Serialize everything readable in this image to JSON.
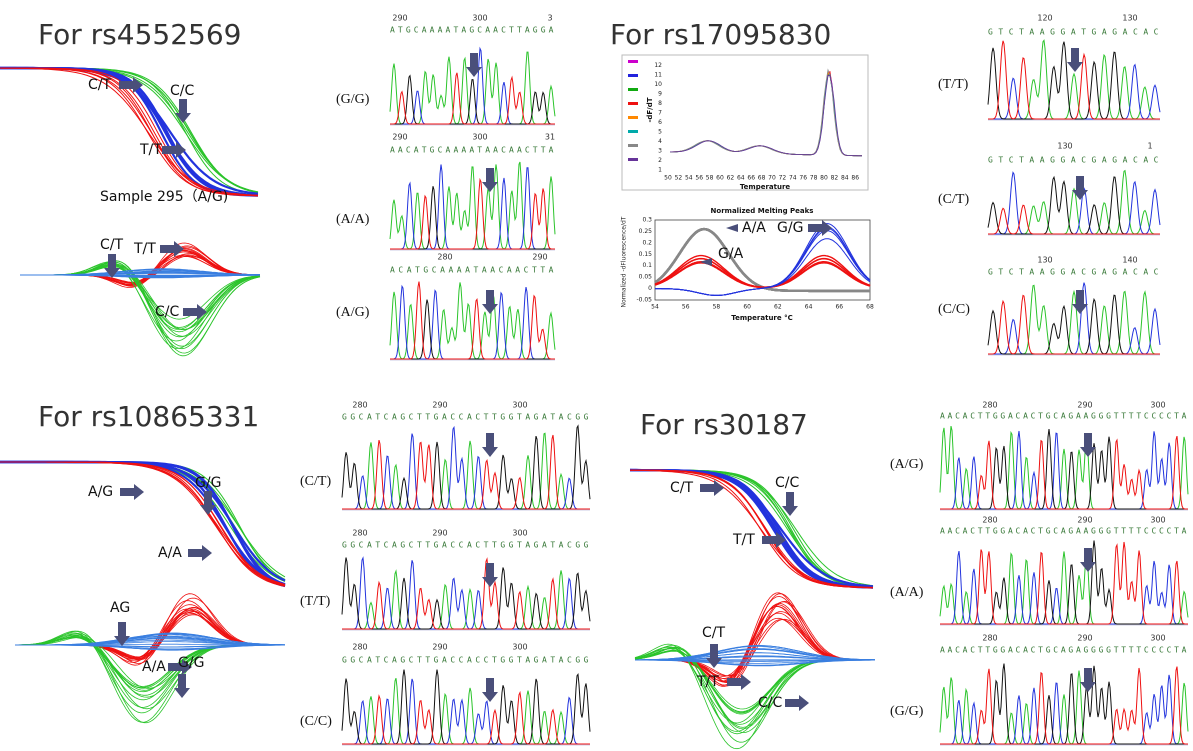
{
  "panels": [
    {
      "title": "For rs4552569",
      "melt_labels": [
        "C/C",
        "C/T",
        "T/T"
      ],
      "sample_label": "Sample 295（A/G)",
      "diff_labels": [
        "C/T",
        "T/T",
        "C/C"
      ],
      "traces": [
        {
          "genotype": "(G/G)",
          "positions": [
            "290",
            "300",
            "3"
          ],
          "sequence": "ATGCAAAATAGCAACTTAGGA"
        },
        {
          "genotype": "(A/A)",
          "positions": [
            "290",
            "300",
            "31"
          ],
          "sequence": "AACATGCAAAATAACAACTTA"
        },
        {
          "genotype": "(A/G)",
          "positions": [
            "280",
            "290"
          ],
          "sequence": "ACATGCAAAATAACAACTTA"
        }
      ]
    },
    {
      "title": "For rs17095830",
      "raw_chart": {
        "x_label": "Temperature",
        "y_label": "-dF/dT",
        "xticks": [
          "50",
          "52",
          "54",
          "56",
          "58",
          "60",
          "62",
          "64",
          "66",
          "68",
          "70",
          "72",
          "74",
          "76",
          "78",
          "80",
          "82",
          "84",
          "86"
        ],
        "yticks": [
          "1",
          "2",
          "3",
          "4",
          "5",
          "6",
          "7",
          "8",
          "9",
          "10",
          "11",
          "12"
        ]
      },
      "norm_chart": {
        "title": "Normalized Melting Peaks",
        "x_label": "Temperature °C",
        "y_label": "Normalized -dFluorescence/dT",
        "xticks": [
          54,
          56,
          58,
          60,
          62,
          64,
          66,
          68
        ],
        "yticks": [
          -0.05,
          0,
          0.05,
          0.1,
          0.15,
          0.2,
          0.25,
          0.3
        ],
        "labels": [
          "A/A",
          "G/G",
          "G/A"
        ]
      },
      "traces": [
        {
          "genotype": "(T/T)",
          "positions": [
            "120",
            "130"
          ],
          "sequence": "GTCTAAGGATGAGACAC"
        },
        {
          "genotype": "(C/T)",
          "positions": [
            "130",
            "1"
          ],
          "sequence": "GTCTAAGGACGAGACAC"
        },
        {
          "genotype": "(C/C)",
          "positions": [
            "130",
            "140"
          ],
          "sequence": "GTCTAAGGACGAGACAC"
        }
      ]
    },
    {
      "title": "For rs10865331",
      "melt_labels": [
        "A/G",
        "G/G",
        "A/A"
      ],
      "diff_labels": [
        "AG",
        "A/A",
        "G/G"
      ],
      "traces": [
        {
          "genotype": "(C/T)",
          "positions": [
            "280",
            "290",
            "300"
          ],
          "sequence": "GGCATCAGCTTGACCACTTGGTAGATACGG"
        },
        {
          "genotype": "(T/T)",
          "positions": [
            "280",
            "290",
            "300"
          ],
          "sequence": "GGCATCAGCTTGACCACTTGGTAGATACGG"
        },
        {
          "genotype": "(C/C)",
          "positions": [
            "280",
            "290",
            "300"
          ],
          "sequence": "GGCATCAGCTTGACCACCTGGTAGATACGG"
        }
      ]
    },
    {
      "title": "For rs30187",
      "melt_labels": [
        "C/T",
        "C/C",
        "T/T"
      ],
      "diff_labels": [
        "C/T",
        "T/T",
        "C/C"
      ],
      "traces": [
        {
          "genotype": "(A/G)",
          "positions": [
            "280",
            "290",
            "300"
          ],
          "sequence": "AACACTTGGACACTGCAGAAGGGTTTTCCCCTA"
        },
        {
          "genotype": "(A/A)",
          "positions": [
            "280",
            "290",
            "300"
          ],
          "sequence": "AACACTTGGACACTGCAGAAGGGTTTTCCCCTA"
        },
        {
          "genotype": "(G/G)",
          "positions": [
            "280",
            "290",
            "300"
          ],
          "sequence": "AACACTTGGACACTGCAGAGGGGTTTTCCCCTA"
        }
      ]
    }
  ]
}
